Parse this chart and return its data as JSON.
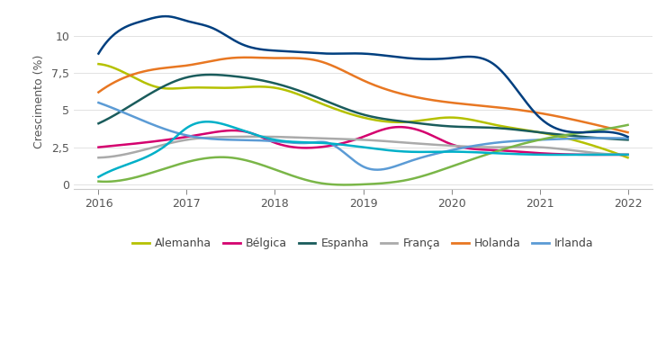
{
  "ylabel": "Crescimento (%)",
  "background_color": "#ffffff",
  "yticks": [
    0,
    2.5,
    5,
    7.5,
    10
  ],
  "ytick_labels": [
    "0",
    "2,5",
    "5",
    "7,5",
    "10"
  ],
  "ylim": [
    -0.3,
    11.5
  ],
  "xlim": [
    2015.72,
    2022.28
  ],
  "xticks": [
    2016,
    2017,
    2018,
    2019,
    2020,
    2021,
    2022
  ],
  "series": {
    "Alemanha": {
      "color": "#b5c100",
      "x": [
        2016,
        2016.3,
        2016.7,
        2017,
        2017.5,
        2018,
        2018.5,
        2019,
        2019.5,
        2020,
        2020.5,
        2021,
        2021.5,
        2022
      ],
      "y": [
        8.1,
        7.5,
        6.5,
        6.5,
        6.5,
        6.5,
        5.5,
        4.5,
        4.2,
        4.5,
        4.0,
        3.5,
        2.8,
        1.8
      ]
    },
    "Belgica": {
      "color": "#d4006e",
      "x": [
        2016,
        2016.5,
        2017,
        2017.3,
        2017.7,
        2018,
        2018.5,
        2019,
        2019.3,
        2019.7,
        2020,
        2020.5,
        2021,
        2021.5,
        2022
      ],
      "y": [
        2.5,
        2.8,
        3.2,
        3.5,
        3.5,
        2.8,
        2.5,
        3.2,
        3.8,
        3.5,
        2.7,
        2.3,
        2.1,
        2.0,
        2.0
      ]
    },
    "Espanha": {
      "color": "#1a5c5c",
      "x": [
        2016,
        2016.5,
        2017,
        2017.5,
        2018,
        2018.5,
        2019,
        2019.5,
        2020,
        2020.5,
        2021,
        2021.5,
        2022
      ],
      "y": [
        4.1,
        5.8,
        7.2,
        7.3,
        6.8,
        5.8,
        4.7,
        4.2,
        3.9,
        3.8,
        3.5,
        3.2,
        3.0
      ]
    },
    "Franca": {
      "color": "#aaaaaa",
      "x": [
        2016,
        2016.5,
        2017,
        2017.5,
        2018,
        2018.5,
        2019,
        2019.5,
        2020,
        2020.5,
        2021,
        2021.5,
        2022
      ],
      "y": [
        1.8,
        2.3,
        3.0,
        3.2,
        3.2,
        3.1,
        3.0,
        2.8,
        2.6,
        2.5,
        2.5,
        2.2,
        2.0
      ]
    },
    "Holanda": {
      "color": "#e87722",
      "x": [
        2016,
        2016.3,
        2016.7,
        2017,
        2017.5,
        2018,
        2018.5,
        2019,
        2019.5,
        2020,
        2020.5,
        2021,
        2021.5,
        2022
      ],
      "y": [
        6.2,
        7.2,
        7.8,
        8.0,
        8.5,
        8.5,
        8.3,
        7.0,
        6.0,
        5.5,
        5.2,
        4.8,
        4.2,
        3.5
      ]
    },
    "Irlanda": {
      "color": "#5b9bd5",
      "x": [
        2016,
        2016.5,
        2017,
        2017.5,
        2018,
        2018.4,
        2018.6,
        2019,
        2019.5,
        2020,
        2020.5,
        2021,
        2021.5,
        2022
      ],
      "y": [
        5.5,
        4.3,
        3.3,
        3.0,
        2.9,
        2.8,
        2.8,
        1.2,
        1.5,
        2.3,
        2.8,
        3.0,
        3.1,
        3.1
      ]
    },
    "Portugal": {
      "color": "#7ab648",
      "x": [
        2016,
        2016.5,
        2017,
        2017.5,
        2018,
        2018.5,
        2019,
        2019.5,
        2020,
        2020.5,
        2021,
        2021.5,
        2022
      ],
      "y": [
        0.2,
        0.6,
        1.5,
        1.8,
        1.0,
        0.1,
        0.0,
        0.3,
        1.2,
        2.2,
        3.0,
        3.5,
        4.0
      ]
    },
    "Italia": {
      "color": "#00b0c8",
      "x": [
        2016,
        2016.4,
        2016.8,
        2017,
        2017.5,
        2018,
        2018.5,
        2019,
        2019.5,
        2020,
        2020.5,
        2021,
        2021.5,
        2022
      ],
      "y": [
        0.5,
        1.5,
        2.8,
        3.8,
        3.9,
        3.0,
        2.8,
        2.5,
        2.2,
        2.2,
        2.1,
        2.0,
        2.0,
        2.0
      ]
    },
    "UK": {
      "color": "#003f7f",
      "x": [
        2016,
        2016.2,
        2016.5,
        2016.8,
        2017,
        2017.3,
        2017.6,
        2018,
        2018.3,
        2018.6,
        2019,
        2019.5,
        2020,
        2020.5,
        2021,
        2021.5,
        2022
      ],
      "y": [
        8.8,
        10.2,
        11.0,
        11.3,
        11.0,
        10.5,
        9.5,
        9.0,
        8.9,
        8.8,
        8.8,
        8.5,
        8.5,
        8.0,
        4.5,
        3.5,
        3.2
      ]
    }
  }
}
